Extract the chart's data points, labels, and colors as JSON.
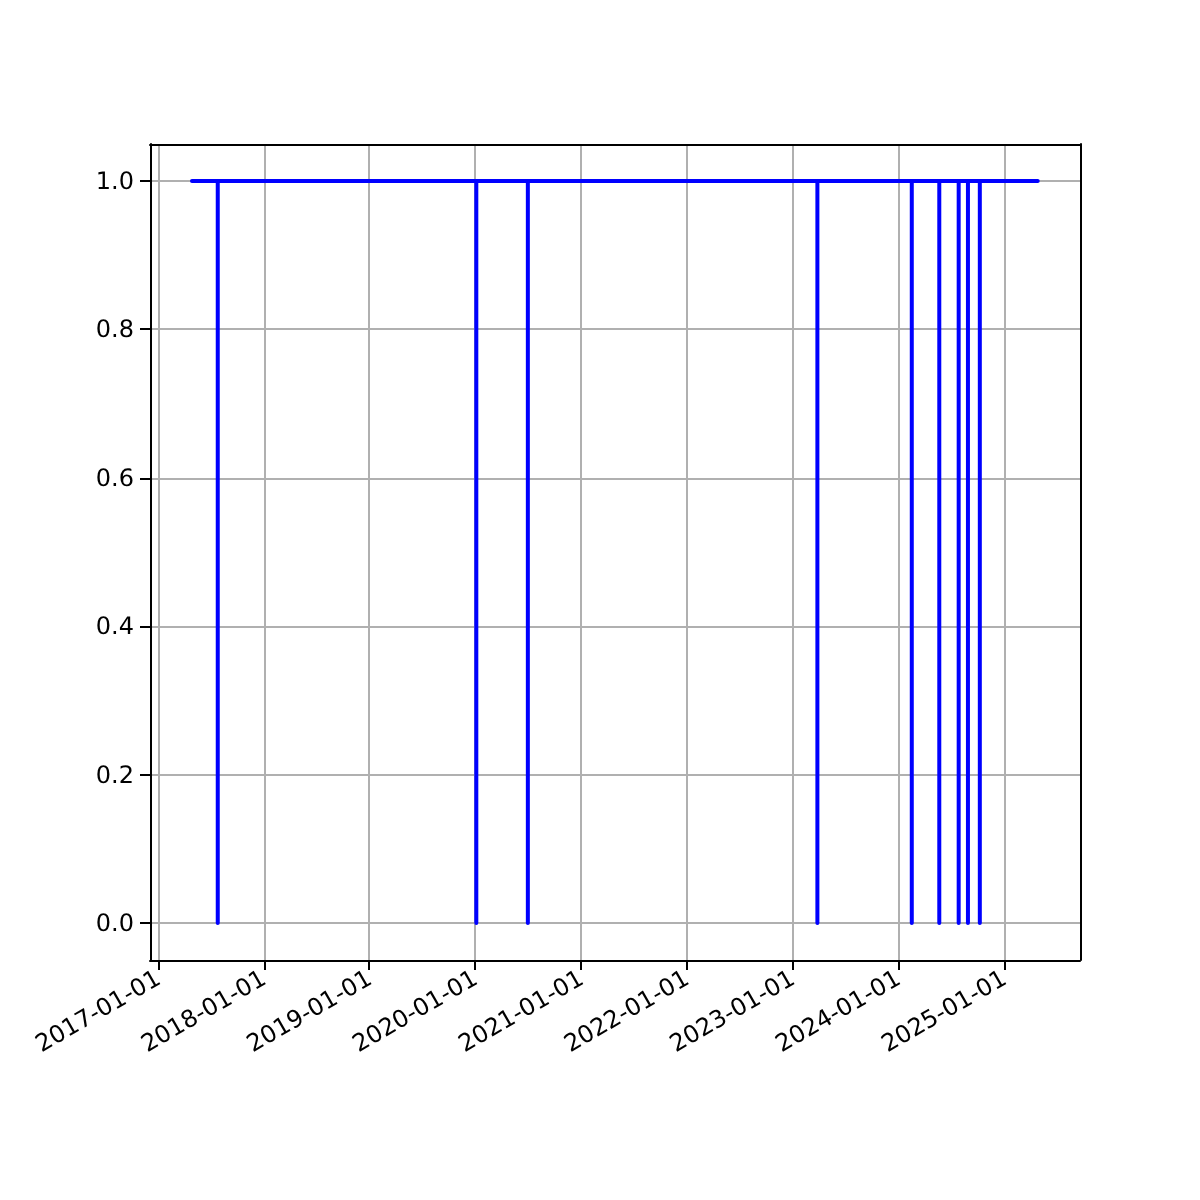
{
  "chart_data": {
    "type": "line",
    "x": [
      "2017-04-28",
      "2017-07-26",
      "2017-07-26",
      "2017-07-26",
      "2020-01-05",
      "2020-01-05",
      "2020-01-05",
      "2020-07-01",
      "2020-07-01",
      "2020-07-01",
      "2023-03-28",
      "2023-03-28",
      "2023-03-28",
      "2024-02-17",
      "2024-02-17",
      "2024-02-17",
      "2024-05-22",
      "2024-05-22",
      "2024-05-22",
      "2024-07-28",
      "2024-07-28",
      "2024-07-28",
      "2024-08-29",
      "2024-08-29",
      "2024-08-29",
      "2024-10-09",
      "2024-10-09",
      "2024-10-09",
      "2025-04-27"
    ],
    "series": [
      {
        "color": "#0000ff",
        "values": [
          1,
          1,
          0,
          1,
          1,
          0,
          1,
          1,
          0,
          1,
          1,
          0,
          1,
          1,
          0,
          1,
          1,
          0,
          1,
          1,
          0,
          1,
          1,
          0,
          1,
          1,
          0,
          1,
          1
        ]
      }
    ],
    "xlim": [
      "2016-12-04",
      "2025-09-20"
    ],
    "xticks": [
      "2017-01-01",
      "2018-01-01",
      "2019-01-01",
      "2020-01-01",
      "2021-01-01",
      "2022-01-01",
      "2023-01-01",
      "2024-01-01",
      "2025-01-01"
    ],
    "ylim": [
      -0.05,
      1.05
    ],
    "yticks": [
      {
        "value": 0,
        "label": "0.0"
      },
      {
        "value": 0.2,
        "label": "0.2"
      },
      {
        "value": 0.4,
        "label": "0.4"
      },
      {
        "value": 0.6,
        "label": "0.6"
      },
      {
        "value": 0.8,
        "label": "0.8"
      },
      {
        "value": 1,
        "label": "1.0"
      }
    ],
    "grid": true,
    "marker": "none",
    "line_style": "solid"
  }
}
